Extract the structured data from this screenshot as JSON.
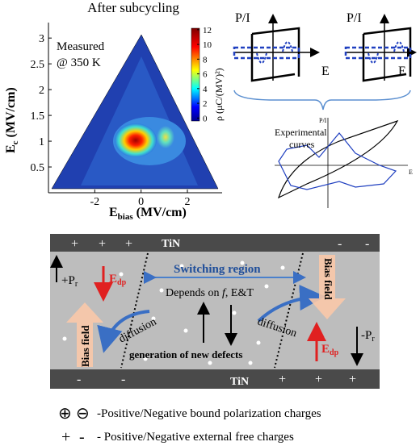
{
  "contour_plot": {
    "title": "After subcycling",
    "annotation": [
      "Measured",
      "@ 350 K"
    ],
    "x_label": {
      "main": "E",
      "sub": "bias",
      "unit": " (MV/cm)"
    },
    "y_label": {
      "main": "E",
      "sub": "c",
      "unit": " (MV/cm)"
    },
    "xlim": [
      -4,
      3.5
    ],
    "xticks": [
      -2,
      0,
      2
    ],
    "ylim": [
      0,
      3.3
    ],
    "yticks": [
      0.5,
      1,
      1.5,
      2,
      2.5,
      3
    ],
    "colorbar": {
      "label": "ρ (μC/(MV)²)",
      "lim": [
        -0.4,
        12.2
      ],
      "ticks": [
        0,
        2,
        4,
        6,
        8,
        10,
        12
      ]
    }
  },
  "schematics": {
    "loops": [
      {
        "y": "P/I",
        "x": "E"
      },
      {
        "y": "P/I",
        "x": "E"
      }
    ],
    "experimental": {
      "label": [
        "Experimental",
        "curves"
      ],
      "y": "P/I",
      "x": "E"
    }
  },
  "device": {
    "top_electrode": "TiN",
    "bottom_electrode": "TiN",
    "top_charges_left": [
      "+",
      "+",
      "+"
    ],
    "top_charges_right": [
      "-",
      "-"
    ],
    "bottom_charges_left": [
      "-",
      "-"
    ],
    "bottom_charges_right": [
      "+",
      "+",
      "+"
    ],
    "switching_region": "Switching region",
    "depends": {
      "text": "Depends on ",
      "f": "f",
      "rest": ", E&T"
    },
    "diffusion_left": "diffusion",
    "diffusion_right": "diffusion",
    "generation": "generation of new defects",
    "pr_left": {
      "sign": "+",
      "main": "P",
      "sub": "r"
    },
    "pr_right": {
      "sign": "-",
      "main": "P",
      "sub": "r"
    },
    "edp_left": {
      "main": "E",
      "sub": "dp"
    },
    "edp_right": {
      "main": "E",
      "sub": "dp"
    },
    "bias_field_left": "Bias field",
    "bias_field_right": "Bias field"
  },
  "legend": [
    {
      "symbols": [
        "⊕",
        "⊖"
      ],
      "text": "-Positive/Negative bound polarization charges"
    },
    {
      "symbols": [
        "+",
        "-"
      ],
      "text": "- Positive/Negative external free charges"
    }
  ]
}
